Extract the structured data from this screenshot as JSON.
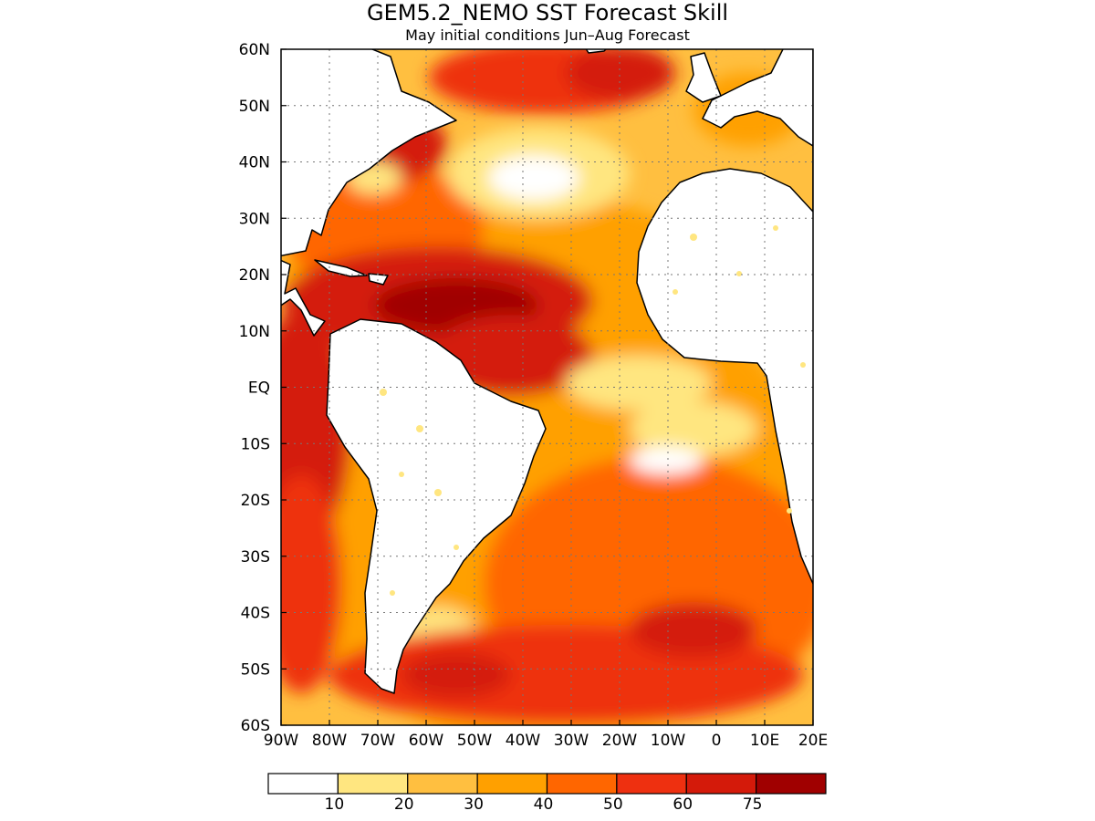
{
  "title": "GEM5.2_NEMO SST Forecast Skill",
  "subtitle": "May initial conditions  Jun–Aug Forecast",
  "map": {
    "lon_range": [
      -90,
      20
    ],
    "lat_range": [
      -60,
      60
    ],
    "lon_ticks": [
      {
        "value": -90,
        "label": "90W"
      },
      {
        "value": -80,
        "label": "80W"
      },
      {
        "value": -70,
        "label": "70W"
      },
      {
        "value": -60,
        "label": "60W"
      },
      {
        "value": -50,
        "label": "50W"
      },
      {
        "value": -40,
        "label": "40W"
      },
      {
        "value": -30,
        "label": "30W"
      },
      {
        "value": -20,
        "label": "20W"
      },
      {
        "value": -10,
        "label": "10W"
      },
      {
        "value": 0,
        "label": "0"
      },
      {
        "value": 10,
        "label": "10E"
      },
      {
        "value": 20,
        "label": "20E"
      }
    ],
    "lat_ticks": [
      {
        "value": 60,
        "label": "60N"
      },
      {
        "value": 50,
        "label": "50N"
      },
      {
        "value": 40,
        "label": "40N"
      },
      {
        "value": 30,
        "label": "30N"
      },
      {
        "value": 20,
        "label": "20N"
      },
      {
        "value": 10,
        "label": "10N"
      },
      {
        "value": 0,
        "label": "EQ"
      },
      {
        "value": -10,
        "label": "10S"
      },
      {
        "value": -20,
        "label": "20S"
      },
      {
        "value": -30,
        "label": "30S"
      },
      {
        "value": -40,
        "label": "40S"
      },
      {
        "value": -50,
        "label": "50S"
      },
      {
        "value": -60,
        "label": "60S"
      }
    ],
    "gridlines": "dotted"
  },
  "colorbar": {
    "colors": [
      "#ffffff",
      "#ffe680",
      "#ffbf40",
      "#ffa000",
      "#ff6600",
      "#ee3010",
      "#d41a0a",
      "#a00000"
    ],
    "boundaries": [
      "10",
      "20",
      "30",
      "40",
      "50",
      "60",
      "75"
    ]
  }
}
